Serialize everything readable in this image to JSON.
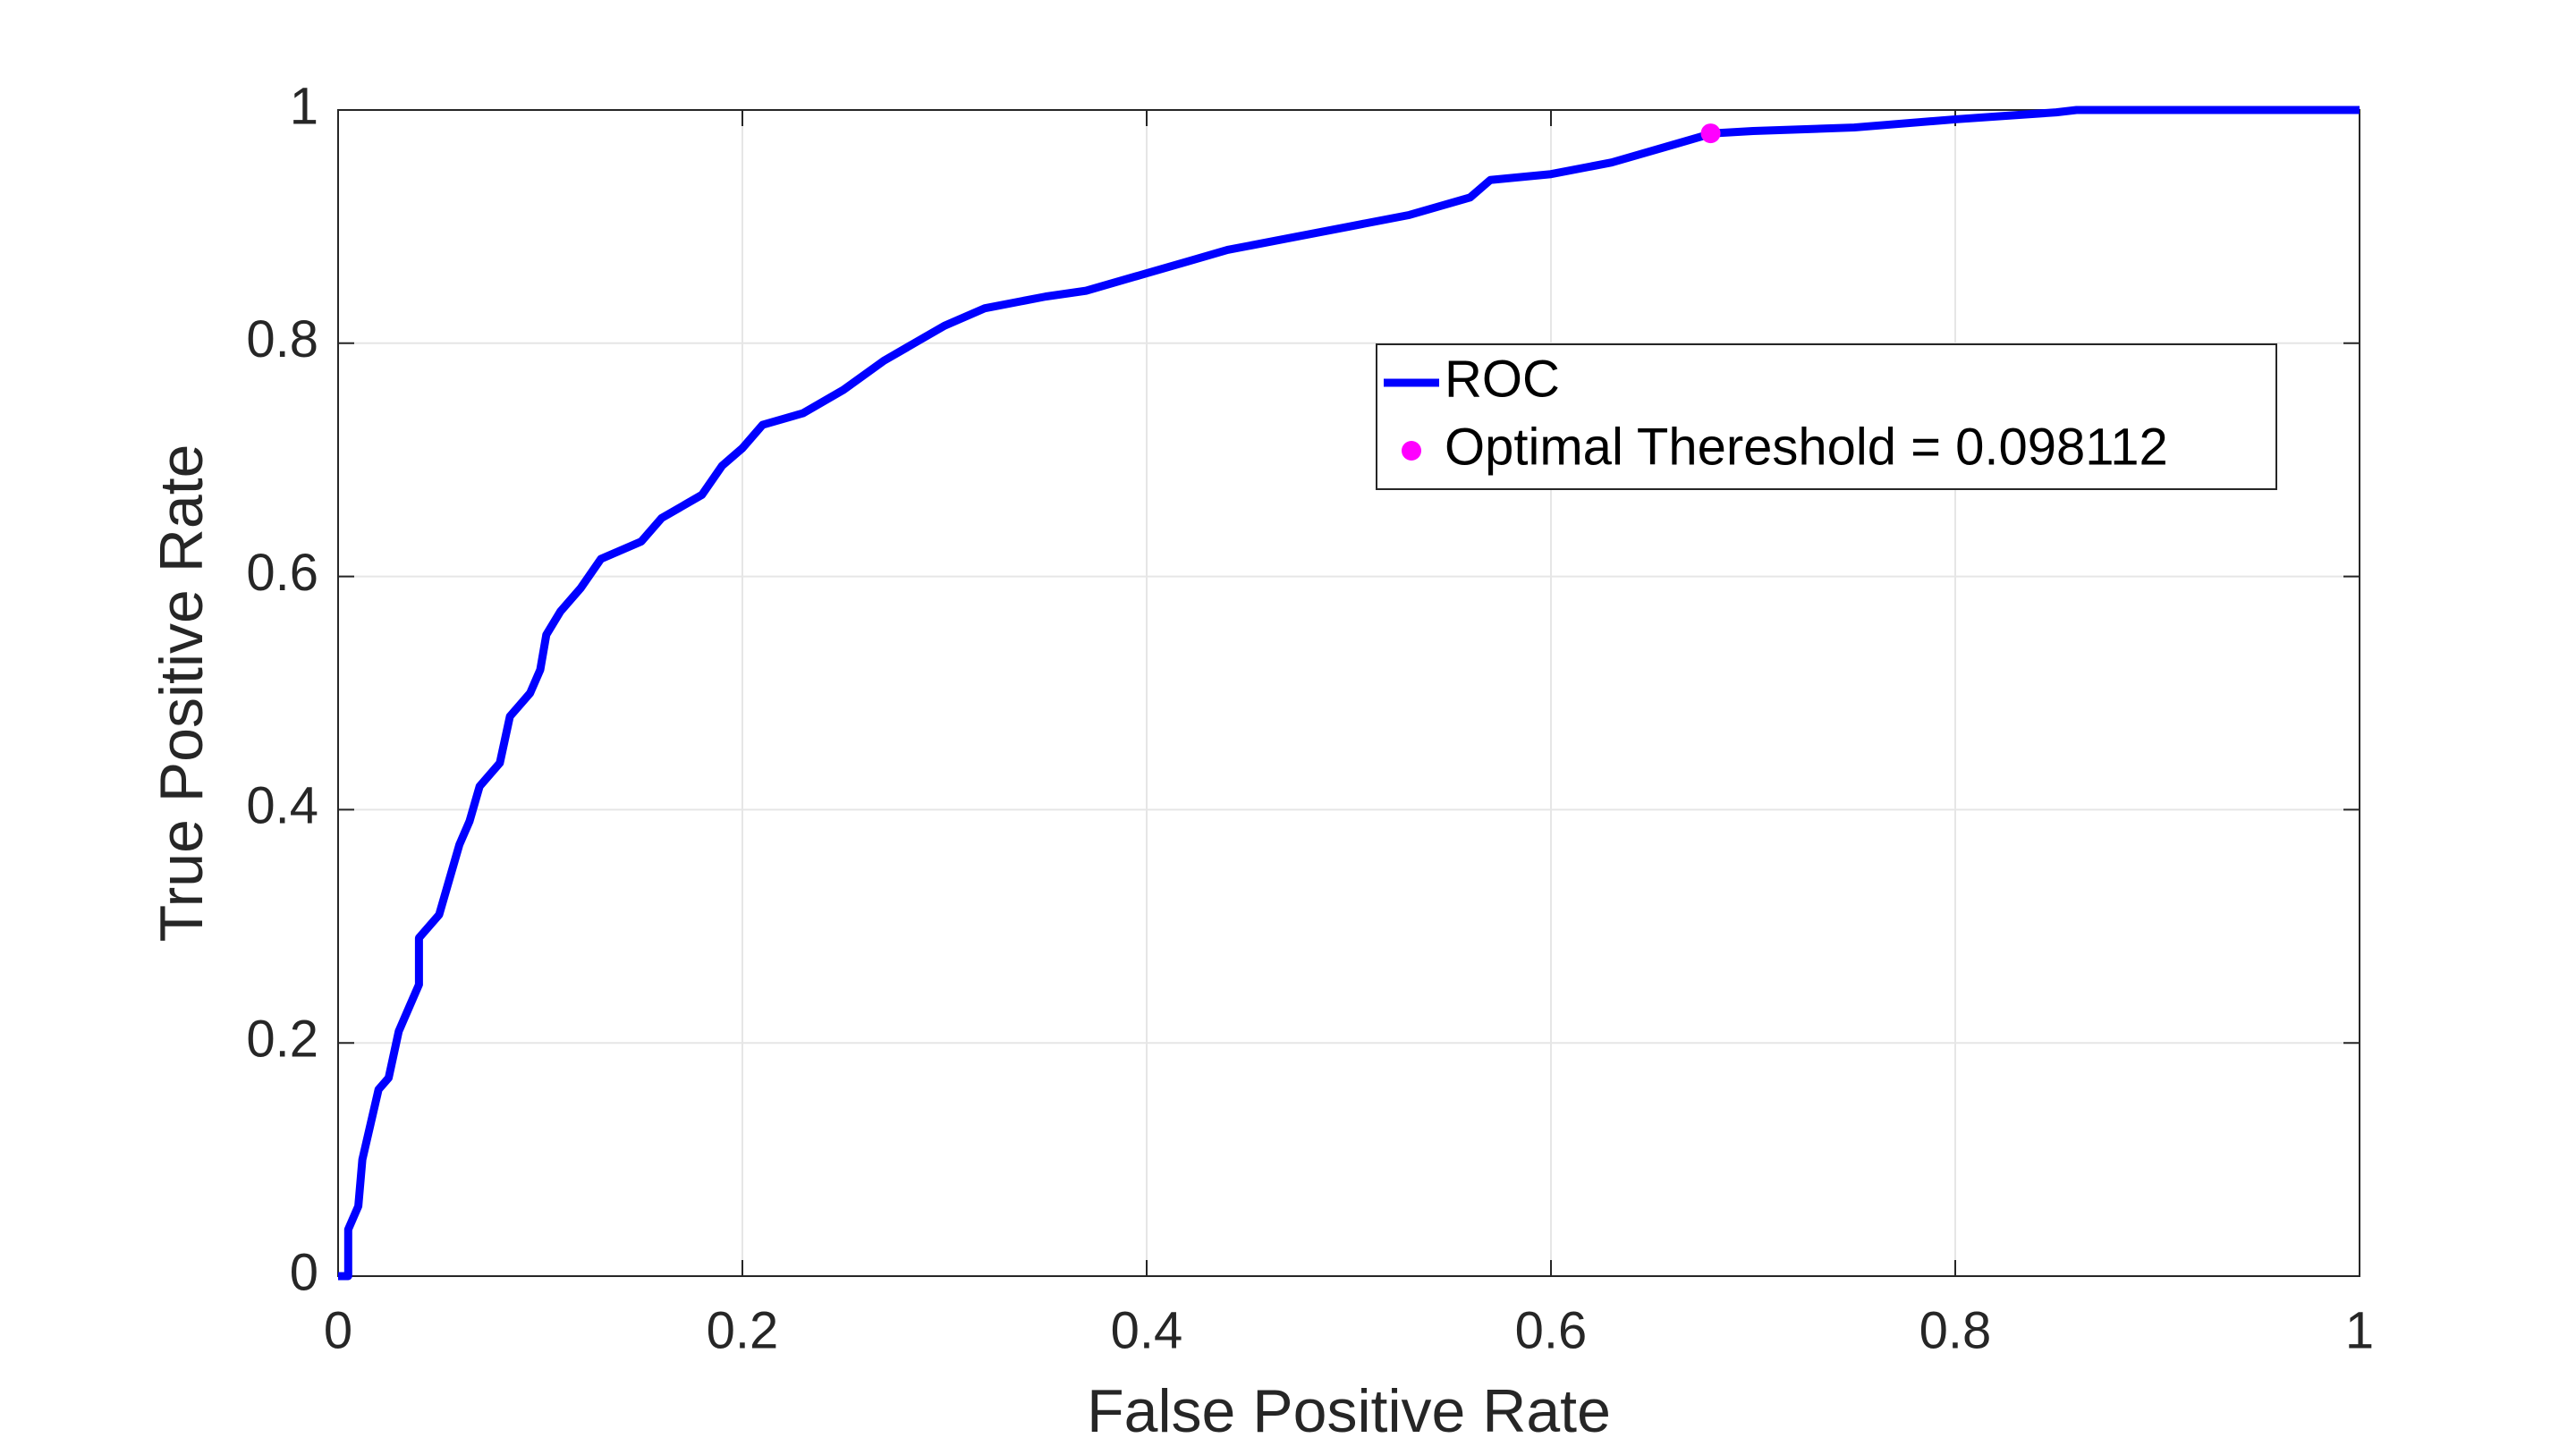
{
  "chart_data": {
    "type": "line",
    "xlabel": "False Positive Rate",
    "ylabel": "True Positive Rate",
    "xlim": [
      0,
      1
    ],
    "ylim": [
      0,
      1
    ],
    "xticks": [
      0,
      0.2,
      0.4,
      0.6,
      0.8,
      1
    ],
    "yticks": [
      0,
      0.2,
      0.4,
      0.6,
      0.8,
      1
    ],
    "grid": true,
    "legend": "upper right",
    "series": [
      {
        "name": "ROC",
        "color": "#0000ff",
        "type": "line",
        "x": [
          0,
          0.005,
          0.005,
          0.01,
          0.012,
          0.016,
          0.02,
          0.025,
          0.03,
          0.035,
          0.04,
          0.04,
          0.05,
          0.055,
          0.06,
          0.065,
          0.07,
          0.08,
          0.085,
          0.09,
          0.095,
          0.1,
          0.103,
          0.11,
          0.12,
          0.13,
          0.15,
          0.16,
          0.18,
          0.19,
          0.2,
          0.21,
          0.23,
          0.25,
          0.27,
          0.29,
          0.3,
          0.32,
          0.35,
          0.37,
          0.4,
          0.42,
          0.44,
          0.47,
          0.5,
          0.53,
          0.56,
          0.57,
          0.6,
          0.63,
          0.66,
          0.68,
          0.7,
          0.75,
          0.8,
          0.85,
          0.86,
          1
        ],
        "values": [
          0,
          0,
          0.04,
          0.06,
          0.1,
          0.13,
          0.16,
          0.17,
          0.21,
          0.23,
          0.25,
          0.29,
          0.31,
          0.34,
          0.37,
          0.39,
          0.42,
          0.44,
          0.48,
          0.49,
          0.5,
          0.52,
          0.55,
          0.57,
          0.59,
          0.615,
          0.63,
          0.65,
          0.67,
          0.695,
          0.71,
          0.73,
          0.74,
          0.76,
          0.785,
          0.805,
          0.815,
          0.83,
          0.84,
          0.845,
          0.86,
          0.87,
          0.88,
          0.89,
          0.9,
          0.91,
          0.925,
          0.94,
          0.945,
          0.955,
          0.97,
          0.98,
          0.982,
          0.985,
          0.992,
          0.998,
          1,
          1
        ]
      },
      {
        "name": "Optimal Thereshold = 0.098112",
        "color": "#ff00ff",
        "type": "scatter",
        "x": [
          0.679
        ],
        "values": [
          0.98
        ]
      }
    ]
  }
}
